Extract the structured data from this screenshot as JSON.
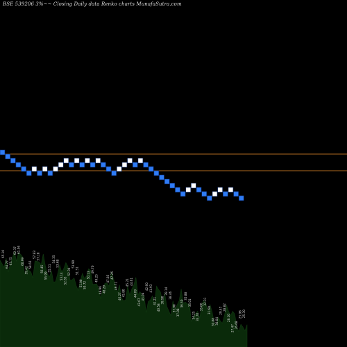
{
  "header": {
    "title": "BSE 539206  3%~~ Closing Daily data  Renko  charts MunafaSutra.com"
  },
  "colors": {
    "background": "#000000",
    "bull_brick": "#ffffff",
    "bear_brick": "#2f7cf6",
    "brick_border": "#0a2a6a",
    "reference_line": "#b06a20",
    "volume_fill": "#0a2a0a",
    "volume_label": "#d8d8d8"
  },
  "chart_data": {
    "type": "renko",
    "reference_levels_px_free": [
      0,
      1
    ],
    "bricks": [
      {
        "dir": "down"
      },
      {
        "dir": "down"
      },
      {
        "dir": "down"
      },
      {
        "dir": "down"
      },
      {
        "dir": "down"
      },
      {
        "dir": "down"
      },
      {
        "dir": "up"
      },
      {
        "dir": "down"
      },
      {
        "dir": "up"
      },
      {
        "dir": "down"
      },
      {
        "dir": "up"
      },
      {
        "dir": "up"
      },
      {
        "dir": "up"
      },
      {
        "dir": "down"
      },
      {
        "dir": "up"
      },
      {
        "dir": "down"
      },
      {
        "dir": "up"
      },
      {
        "dir": "down"
      },
      {
        "dir": "up"
      },
      {
        "dir": "down"
      },
      {
        "dir": "down"
      },
      {
        "dir": "down"
      },
      {
        "dir": "up"
      },
      {
        "dir": "up"
      },
      {
        "dir": "up"
      },
      {
        "dir": "down"
      },
      {
        "dir": "up"
      },
      {
        "dir": "down"
      },
      {
        "dir": "down"
      },
      {
        "dir": "down"
      },
      {
        "dir": "down"
      },
      {
        "dir": "down"
      },
      {
        "dir": "down"
      },
      {
        "dir": "down"
      },
      {
        "dir": "down"
      },
      {
        "dir": "up"
      },
      {
        "dir": "up"
      },
      {
        "dir": "down"
      },
      {
        "dir": "down"
      },
      {
        "dir": "down"
      },
      {
        "dir": "up"
      },
      {
        "dir": "up"
      },
      {
        "dir": "down"
      },
      {
        "dir": "up"
      },
      {
        "dir": "down"
      },
      {
        "dir": "down"
      }
    ],
    "volume_labels": [
      "65.10",
      "64.27",
      "63.75",
      "62.37",
      "61.56",
      "60.99",
      "59.42",
      "58.66",
      "57.83",
      "57.18",
      "56.45",
      "55.99",
      "55.51",
      "54.35",
      "53.68",
      "53.14",
      "52.65",
      "52.34",
      "51.90",
      "51.51",
      "51.00",
      "50.72",
      "50.13",
      "49.70",
      "49.25",
      "48.96",
      "48.29",
      "47.85",
      "47.26",
      "46.71",
      "46.27",
      "45.80",
      "45.21",
      "44.61",
      "44.09",
      "43.67",
      "43.04",
      "42.60",
      "41.93",
      "41.21",
      "40.58",
      "39.90",
      "39.14",
      "38.46",
      "37.90",
      "37.08",
      "36.50",
      "35.88",
      "35.01",
      "34.25",
      "33.70",
      "33.06",
      "32.31",
      "31.60",
      "30.88",
      "30.04",
      "29.47",
      "28.82",
      "28.10",
      "27.47",
      "26.68",
      "25.98",
      "25.30"
    ]
  }
}
